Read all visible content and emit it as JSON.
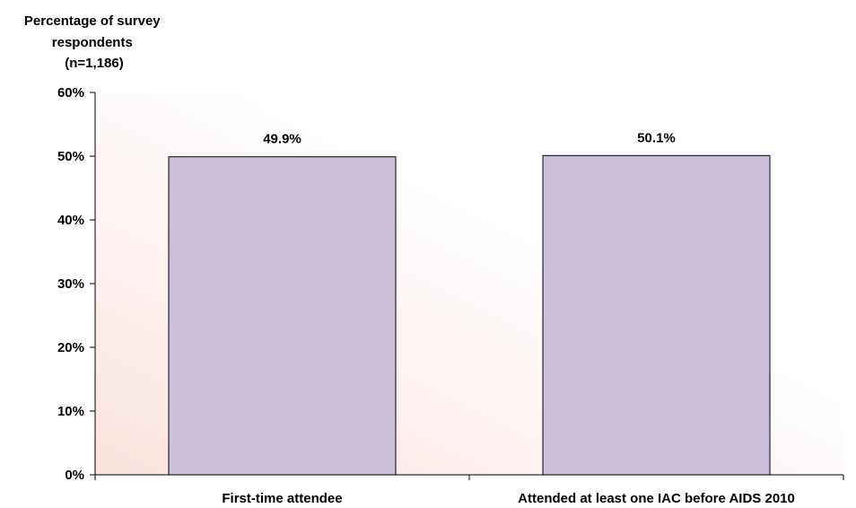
{
  "chart_data": {
    "type": "bar",
    "title": "",
    "xlabel": "",
    "ylabel_lines": [
      "Percentage of survey",
      "respondents",
      "(n=1,186)"
    ],
    "categories": [
      "First-time attendee",
      "Attended at least one IAC before AIDS 2010"
    ],
    "values": [
      49.9,
      50.1
    ],
    "data_labels": [
      "49.9%",
      "50.1%"
    ],
    "ylim": [
      0,
      60
    ],
    "yticks": [
      {
        "value": 0,
        "label": "0%"
      },
      {
        "value": 10,
        "label": "10%"
      },
      {
        "value": 20,
        "label": "20%"
      },
      {
        "value": 30,
        "label": "30%"
      },
      {
        "value": 40,
        "label": "40%"
      },
      {
        "value": 50,
        "label": "50%"
      },
      {
        "value": 60,
        "label": "60%"
      }
    ],
    "bar_color": "#ccc0da",
    "bar_border_color": "#000000",
    "plot_background": [
      "#fbe3df",
      "#ffffff"
    ],
    "grid": false,
    "legend": "none"
  }
}
